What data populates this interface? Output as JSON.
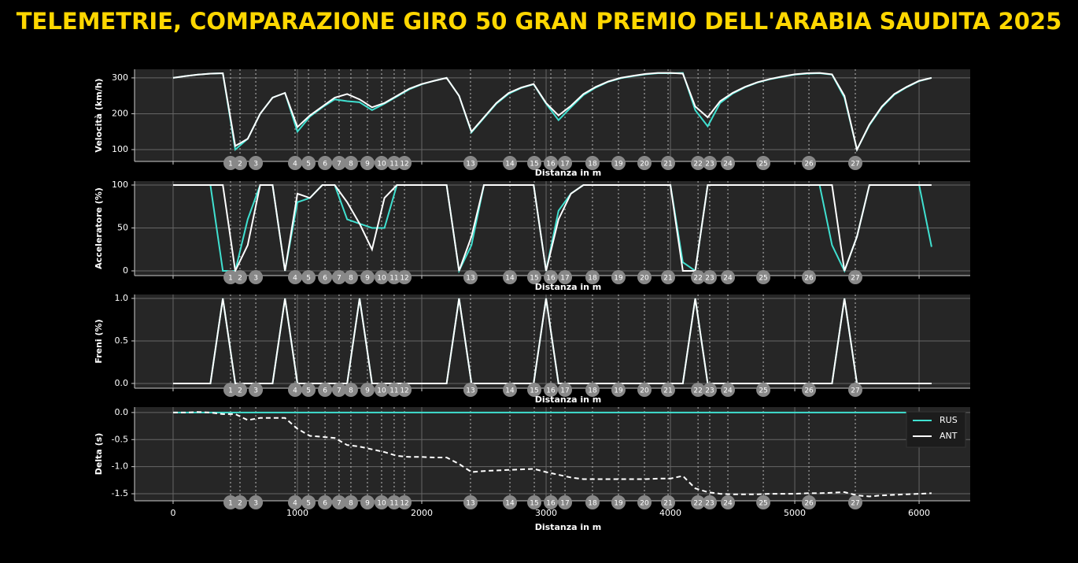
{
  "title": "TELEMETRIE, COMPARAZIONE GIRO 50 GRAN PREMIO DELL'ARABIA SAUDITA 2025",
  "corners": {
    "numbers": [
      1,
      2,
      3,
      4,
      5,
      6,
      7,
      8,
      9,
      10,
      11,
      12,
      13,
      14,
      15,
      16,
      17,
      18,
      19,
      20,
      21,
      22,
      23,
      24,
      25,
      26,
      27
    ],
    "distance": [
      462,
      538,
      665,
      981,
      1089,
      1222,
      1335,
      1430,
      1563,
      1677,
      1778,
      1861,
      2392,
      2709,
      2905,
      3038,
      3152,
      3373,
      3582,
      3791,
      3981,
      4222,
      4316,
      4462,
      4747,
      5114,
      5487
    ]
  },
  "chart_data": [
    {
      "type": "line",
      "ylabel": "Velocità (km/h)",
      "xlabel": "Distanza in m",
      "x": [
        0,
        100,
        200,
        300,
        400,
        500,
        600,
        700,
        800,
        900,
        1000,
        1100,
        1200,
        1300,
        1400,
        1500,
        1600,
        1700,
        1800,
        1900,
        2000,
        2100,
        2200,
        2300,
        2400,
        2500,
        2600,
        2700,
        2800,
        2900,
        3000,
        3100,
        3200,
        3300,
        3400,
        3500,
        3600,
        3700,
        3800,
        3900,
        4000,
        4100,
        4200,
        4300,
        4400,
        4500,
        4600,
        4700,
        4800,
        4900,
        5000,
        5100,
        5200,
        5300,
        5400,
        5500,
        5600,
        5700,
        5800,
        5900,
        6000,
        6100
      ],
      "series": [
        {
          "name": "RUS",
          "color": "#40e0d0",
          "values": [
            300,
            305,
            309,
            312,
            313,
            100,
            130,
            200,
            245,
            258,
            150,
            192,
            218,
            240,
            235,
            232,
            210,
            228,
            248,
            268,
            282,
            292,
            300,
            250,
            148,
            188,
            228,
            256,
            272,
            282,
            228,
            182,
            218,
            252,
            273,
            289,
            299,
            305,
            310,
            313,
            313,
            314,
            210,
            165,
            230,
            256,
            274,
            287,
            296,
            303,
            309,
            312,
            313,
            309,
            245,
            100,
            168,
            218,
            253,
            274,
            291,
            300
          ]
        },
        {
          "name": "ANT",
          "color": "#ffffff",
          "values": [
            300,
            305,
            309,
            312,
            313,
            110,
            130,
            200,
            245,
            258,
            163,
            195,
            220,
            245,
            255,
            240,
            218,
            230,
            250,
            270,
            283,
            292,
            300,
            250,
            150,
            190,
            230,
            258,
            273,
            283,
            230,
            195,
            222,
            255,
            275,
            290,
            300,
            306,
            311,
            314,
            314,
            312,
            220,
            190,
            235,
            258,
            275,
            288,
            297,
            304,
            310,
            313,
            314,
            310,
            250,
            100,
            170,
            220,
            255,
            275,
            292,
            300
          ]
        }
      ],
      "xlim": [
        -310,
        6411
      ],
      "ylim": [
        67,
        324
      ],
      "xticks": [
        0,
        1000,
        2000,
        3000,
        4000,
        5000,
        6000
      ],
      "yticks": [
        100,
        200,
        300
      ],
      "grid": true
    },
    {
      "type": "line",
      "ylabel": "Acceleratore (%)",
      "xlabel": "Distanza in m",
      "x": [
        0,
        100,
        200,
        300,
        400,
        500,
        600,
        700,
        800,
        900,
        1000,
        1100,
        1200,
        1300,
        1400,
        1500,
        1600,
        1700,
        1800,
        1900,
        2000,
        2100,
        2200,
        2300,
        2400,
        2500,
        2600,
        2700,
        2800,
        2900,
        3000,
        3100,
        3200,
        3300,
        3400,
        3500,
        3600,
        3700,
        3800,
        3900,
        4000,
        4100,
        4200,
        4300,
        4400,
        4500,
        4600,
        4700,
        4800,
        4900,
        5000,
        5100,
        5200,
        5300,
        5400,
        5500,
        5600,
        5700,
        5800,
        5900,
        6000,
        6100
      ],
      "series": [
        {
          "name": "RUS",
          "color": "#40e0d0",
          "values": [
            100,
            100,
            100,
            100,
            0,
            0,
            60,
            100,
            100,
            0,
            80,
            85,
            100,
            100,
            60,
            55,
            50,
            50,
            100,
            100,
            100,
            100,
            100,
            0,
            30,
            100,
            100,
            100,
            100,
            100,
            0,
            70,
            90,
            100,
            100,
            100,
            100,
            100,
            100,
            100,
            100,
            10,
            0,
            100,
            100,
            100,
            100,
            100,
            100,
            100,
            100,
            100,
            100,
            30,
            0,
            40,
            100,
            100,
            100,
            100,
            100,
            28
          ]
        },
        {
          "name": "ANT",
          "color": "#ffffff",
          "values": [
            100,
            100,
            100,
            100,
            100,
            0,
            30,
            100,
            100,
            0,
            90,
            85,
            100,
            100,
            80,
            55,
            25,
            85,
            100,
            100,
            100,
            100,
            100,
            0,
            40,
            100,
            100,
            100,
            100,
            100,
            0,
            60,
            90,
            100,
            100,
            100,
            100,
            100,
            100,
            100,
            100,
            0,
            0,
            100,
            100,
            100,
            100,
            100,
            100,
            100,
            100,
            100,
            100,
            100,
            0,
            40,
            100,
            100,
            100,
            100,
            100,
            100
          ]
        }
      ],
      "xlim": [
        -310,
        6411
      ],
      "ylim": [
        -5.5,
        104.6
      ],
      "xticks": [
        0,
        1000,
        2000,
        3000,
        4000,
        5000,
        6000
      ],
      "yticks": [
        0,
        50,
        100
      ],
      "grid": true
    },
    {
      "type": "line",
      "ylabel": "Freni (%)",
      "xlabel": "Distanza in m",
      "x": [
        0,
        100,
        200,
        300,
        400,
        500,
        600,
        700,
        800,
        900,
        1000,
        1100,
        1200,
        1300,
        1400,
        1500,
        1600,
        1700,
        1800,
        1900,
        2000,
        2100,
        2200,
        2300,
        2400,
        2500,
        2600,
        2700,
        2800,
        2900,
        3000,
        3100,
        3200,
        3300,
        3400,
        3500,
        3600,
        3700,
        3800,
        3900,
        4000,
        4100,
        4200,
        4300,
        4400,
        4500,
        4600,
        4700,
        4800,
        4900,
        5000,
        5100,
        5200,
        5300,
        5400,
        5500,
        5600,
        5700,
        5800,
        5900,
        6000,
        6100
      ],
      "series": [
        {
          "name": "RUS",
          "color": "#40e0d0",
          "values": [
            0,
            0,
            0,
            0,
            1,
            0,
            0,
            0,
            0,
            1,
            0,
            0,
            0,
            0,
            0,
            1,
            0,
            0,
            0,
            0,
            0,
            0,
            0,
            1,
            0,
            0,
            0,
            0,
            0,
            0,
            1,
            0,
            0,
            0,
            0,
            0,
            0,
            0,
            0,
            0,
            0,
            0,
            1,
            0,
            0,
            0,
            0,
            0,
            0,
            0,
            0,
            0,
            0,
            0,
            1,
            0,
            0,
            0,
            0,
            0,
            0,
            0
          ]
        },
        {
          "name": "ANT",
          "color": "#ffffff",
          "values": [
            0,
            0,
            0,
            0,
            1,
            0,
            0,
            0,
            0,
            1,
            0,
            0,
            0,
            0,
            0,
            1,
            0,
            0,
            0,
            0,
            0,
            0,
            0,
            1,
            0,
            0,
            0,
            0,
            0,
            0,
            1,
            0,
            0,
            0,
            0,
            0,
            0,
            0,
            0,
            0,
            0,
            0,
            1,
            0,
            0,
            0,
            0,
            0,
            0,
            0,
            0,
            0,
            0,
            0,
            1,
            0,
            0,
            0,
            0,
            0,
            0,
            0
          ]
        }
      ],
      "xlim": [
        -310,
        6411
      ],
      "ylim": [
        -0.056,
        1.046
      ],
      "xticks": [
        0,
        1000,
        2000,
        3000,
        4000,
        5000,
        6000
      ],
      "yticks": [
        {
          "value": 0,
          "label": "0.0"
        },
        0.5,
        {
          "value": 1,
          "label": "1.0"
        }
      ],
      "grid": true
    },
    {
      "type": "line",
      "ylabel": "Delta (s)",
      "xlabel": "Distanza in m",
      "x": [
        0,
        100,
        200,
        300,
        400,
        500,
        600,
        700,
        800,
        900,
        1000,
        1100,
        1200,
        1300,
        1400,
        1500,
        1600,
        1700,
        1800,
        1900,
        2000,
        2100,
        2200,
        2300,
        2400,
        2500,
        2600,
        2700,
        2800,
        2900,
        3000,
        3100,
        3200,
        3300,
        3400,
        3500,
        3600,
        3700,
        3800,
        3900,
        4000,
        4100,
        4200,
        4300,
        4400,
        4500,
        4600,
        4700,
        4800,
        4900,
        5000,
        5100,
        5200,
        5300,
        5400,
        5500,
        5600,
        5700,
        5800,
        5900,
        6000,
        6100
      ],
      "series": [
        {
          "name": "RUS",
          "color": "#40e0d0",
          "values": [
            0,
            0,
            0,
            0,
            0,
            0,
            0,
            0,
            0,
            0,
            0,
            0,
            0,
            0,
            0,
            0,
            0,
            0,
            0,
            0,
            0,
            0,
            0,
            0,
            0,
            0,
            0,
            0,
            0,
            0,
            0,
            0,
            0,
            0,
            0,
            0,
            0,
            0,
            0,
            0,
            0,
            0,
            0,
            0,
            0,
            0,
            0,
            0,
            0,
            0,
            0,
            0,
            0,
            0,
            0,
            0,
            0,
            0,
            0,
            0,
            0,
            0
          ]
        },
        {
          "name": "ANT",
          "color": "#ffffff",
          "linestyle": "dashed",
          "values": [
            0,
            0,
            0.01,
            0,
            -0.03,
            -0.03,
            -0.14,
            -0.1,
            -0.1,
            -0.1,
            -0.3,
            -0.43,
            -0.45,
            -0.47,
            -0.6,
            -0.63,
            -0.68,
            -0.73,
            -0.8,
            -0.82,
            -0.82,
            -0.83,
            -0.83,
            -0.95,
            -1.1,
            -1.08,
            -1.07,
            -1.06,
            -1.05,
            -1.04,
            -1.1,
            -1.15,
            -1.2,
            -1.23,
            -1.23,
            -1.23,
            -1.23,
            -1.23,
            -1.23,
            -1.22,
            -1.22,
            -1.17,
            -1.4,
            -1.47,
            -1.5,
            -1.51,
            -1.51,
            -1.51,
            -1.5,
            -1.5,
            -1.5,
            -1.49,
            -1.49,
            -1.48,
            -1.47,
            -1.53,
            -1.55,
            -1.53,
            -1.52,
            -1.51,
            -1.5,
            -1.49
          ]
        }
      ],
      "xlim": [
        -310,
        6411
      ],
      "ylim": [
        -1.63,
        0.1
      ],
      "xticks": [
        0,
        1000,
        2000,
        3000,
        4000,
        5000,
        6000
      ],
      "yticks": [
        {
          "value": 0,
          "label": "0.0"
        },
        -0.5,
        {
          "value": -1,
          "label": "-1.0"
        },
        -1.5
      ],
      "grid": true,
      "legend": "upper right"
    }
  ]
}
